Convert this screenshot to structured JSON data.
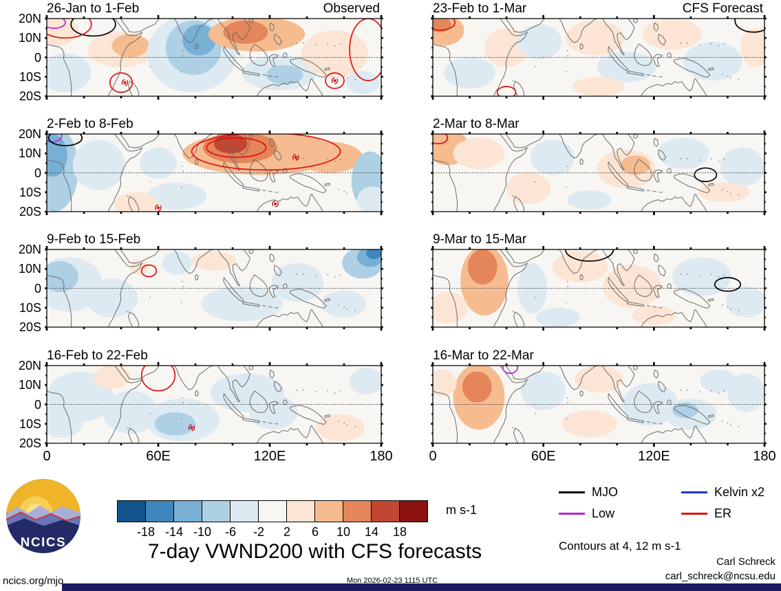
{
  "chart_data": {
    "type": "heatmap",
    "title": "7-day VWND200 with CFS forecasts",
    "contour_note": "Contours at 4, 12 m s-1",
    "x_ticks": [
      "0",
      "60E",
      "120E",
      "180"
    ],
    "y_ticks": [
      "20N",
      "10N",
      "0",
      "10S",
      "20S"
    ],
    "xlim": [
      0,
      180
    ],
    "ylim_deg": [
      -20,
      20
    ],
    "columns": [
      "Observed",
      "CFS Forecast"
    ],
    "colorbar": {
      "label": "m s-1",
      "ticks": [
        "-18",
        "-14",
        "-10",
        "-6",
        "-2",
        "2",
        "6",
        "10",
        "14",
        "18"
      ],
      "colors": [
        "#14538c",
        "#3e86bb",
        "#77b0d4",
        "#aed0e4",
        "#ddeaf2",
        "#f8f6f3",
        "#fce5d4",
        "#f6bc90",
        "#e4855a",
        "#c24732",
        "#8c1212"
      ]
    },
    "value_colors": {
      "-18": "#14538c",
      "-14": "#3e86bb",
      "-10": "#77b0d4",
      "-6": "#aed0e4",
      "-2": "#ddeaf2",
      "2": "#fce5d4",
      "6": "#f6bc90",
      "10": "#e4855a",
      "14": "#c24732",
      "18": "#8c1212"
    },
    "legend": [
      {
        "label": "MJO",
        "color": "#000000"
      },
      {
        "label": "Kelvin x2",
        "color": "#2233cc"
      },
      {
        "label": "Low",
        "color": "#bb22cc"
      },
      {
        "label": "ER",
        "color": "#dd1111"
      }
    ],
    "panels": [
      {
        "title": "26-Jan to 1-Feb",
        "corner": "Observed",
        "anomalies": [
          [
            5,
            14,
            12,
            8,
            2
          ],
          [
            40,
            4,
            18,
            9,
            2
          ],
          [
            45,
            6,
            10,
            6,
            6
          ],
          [
            78,
            2,
            24,
            20,
            -2
          ],
          [
            79,
            5,
            15,
            14,
            -6
          ],
          [
            82,
            9,
            9,
            8,
            -10
          ],
          [
            113,
            12,
            26,
            9,
            6
          ],
          [
            107,
            13,
            12,
            6,
            10
          ],
          [
            125,
            -8,
            20,
            9,
            -2
          ],
          [
            128,
            -9,
            10,
            5,
            -6
          ],
          [
            10,
            -8,
            14,
            10,
            -2
          ],
          [
            155,
            2,
            18,
            12,
            2
          ],
          [
            170,
            -13,
            9,
            6,
            -2
          ]
        ],
        "contours": [
          [
            "black",
            25,
            17,
            12,
            6
          ],
          [
            "purple",
            4,
            18,
            6,
            3
          ],
          [
            "red",
            10,
            17,
            14,
            7
          ],
          [
            "red",
            40,
            -13,
            6,
            5
          ],
          [
            "red",
            173,
            4,
            10,
            16
          ],
          [
            "red",
            155,
            -12,
            5,
            4
          ]
        ],
        "cyclones": [
          [
            42,
            -13
          ],
          [
            155,
            -12
          ]
        ]
      },
      {
        "title": "23-Feb to 1-Mar",
        "corner": "CFS Forecast",
        "anomalies": [
          [
            6,
            14,
            11,
            8,
            6
          ],
          [
            4,
            17,
            6,
            4,
            10
          ],
          [
            20,
            -8,
            14,
            8,
            -2
          ],
          [
            40,
            5,
            12,
            10,
            2
          ],
          [
            58,
            8,
            12,
            9,
            -2
          ],
          [
            88,
            10,
            16,
            9,
            2
          ],
          [
            105,
            -5,
            16,
            8,
            -2
          ],
          [
            130,
            12,
            16,
            8,
            2
          ],
          [
            152,
            -2,
            16,
            10,
            -2
          ],
          [
            175,
            5,
            8,
            10,
            2
          ],
          [
            90,
            -15,
            14,
            5,
            2
          ]
        ],
        "contours": [
          [
            "red",
            4,
            18,
            8,
            4
          ],
          [
            "black",
            174,
            19,
            10,
            6
          ],
          [
            "red",
            40,
            -18,
            5,
            3
          ]
        ],
        "cyclones": []
      },
      {
        "title": "2-Feb to 8-Feb",
        "corner": null,
        "anomalies": [
          [
            4,
            2,
            13,
            22,
            -6
          ],
          [
            3,
            9,
            8,
            11,
            -10
          ],
          [
            28,
            4,
            14,
            13,
            -2
          ],
          [
            115,
            10,
            42,
            11,
            6
          ],
          [
            104,
            13,
            20,
            8,
            10
          ],
          [
            99,
            15,
            9,
            5,
            14
          ],
          [
            152,
            8,
            18,
            8,
            6
          ],
          [
            70,
            -12,
            16,
            7,
            -2
          ],
          [
            60,
            5,
            10,
            8,
            -2
          ],
          [
            174,
            -4,
            10,
            15,
            -6
          ],
          [
            175,
            -14,
            8,
            7,
            -2
          ],
          [
            48,
            -16,
            12,
            6,
            2
          ]
        ],
        "contours": [
          [
            "red",
            118,
            11,
            40,
            9.5
          ],
          [
            "red",
            102,
            13,
            16,
            5
          ],
          [
            "purple",
            3,
            19,
            5,
            3
          ],
          [
            "black",
            10,
            18,
            9,
            4
          ]
        ],
        "cyclones": [
          [
            60,
            -18
          ],
          [
            123,
            -16
          ],
          [
            134,
            8
          ]
        ]
      },
      {
        "title": "2-Mar to 8-Mar",
        "corner": null,
        "anomalies": [
          [
            8,
            13,
            12,
            9,
            6
          ],
          [
            25,
            10,
            14,
            8,
            2
          ],
          [
            52,
            -8,
            12,
            8,
            2
          ],
          [
            65,
            8,
            12,
            9,
            -2
          ],
          [
            105,
            2,
            16,
            10,
            2
          ],
          [
            110,
            4,
            8,
            5,
            6
          ],
          [
            136,
            10,
            14,
            8,
            -2
          ],
          [
            168,
            3,
            12,
            10,
            -2
          ],
          [
            158,
            -10,
            14,
            5,
            2
          ],
          [
            85,
            -14,
            12,
            5,
            -2
          ]
        ],
        "contours": [
          [
            "black",
            148,
            -1,
            6,
            3.5
          ],
          [
            "red",
            3,
            18,
            5,
            3
          ]
        ],
        "cyclones": []
      },
      {
        "title": "9-Feb to 15-Feb",
        "corner": null,
        "anomalies": [
          [
            12,
            2,
            18,
            14,
            -2
          ],
          [
            7,
            6,
            10,
            8,
            -6
          ],
          [
            35,
            -5,
            14,
            10,
            -2
          ],
          [
            50,
            11,
            5,
            4,
            2
          ],
          [
            70,
            13,
            8,
            6,
            -2
          ],
          [
            105,
            -8,
            22,
            9,
            -2
          ],
          [
            135,
            3,
            14,
            10,
            -2
          ],
          [
            160,
            -8,
            12,
            7,
            -2
          ],
          [
            90,
            14,
            12,
            5,
            2
          ],
          [
            170,
            13,
            11,
            8,
            -6
          ],
          [
            174,
            16,
            7,
            5,
            -10
          ],
          [
            176,
            18,
            4,
            3,
            -14
          ]
        ],
        "contours": [
          [
            "red",
            55,
            9,
            4,
            3
          ]
        ],
        "cyclones": []
      },
      {
        "title": "9-Mar to 15-Mar",
        "corner": null,
        "anomalies": [
          [
            28,
            4,
            13,
            18,
            6
          ],
          [
            27,
            11,
            8,
            9,
            10
          ],
          [
            8,
            -10,
            11,
            8,
            2
          ],
          [
            54,
            0,
            8,
            13,
            -2
          ],
          [
            80,
            11,
            15,
            8,
            2
          ],
          [
            108,
            1,
            16,
            11,
            2
          ],
          [
            146,
            6,
            16,
            10,
            -2
          ],
          [
            170,
            -7,
            11,
            8,
            -2
          ],
          [
            68,
            -15,
            12,
            5,
            -2
          ],
          [
            120,
            -14,
            12,
            5,
            2
          ]
        ],
        "contours": [
          [
            "black",
            85,
            20,
            13,
            6
          ],
          [
            "black",
            160,
            2,
            7,
            3.5
          ]
        ],
        "cyclones": []
      },
      {
        "title": "16-Feb to 22-Feb",
        "corner": null,
        "anomalies": [
          [
            18,
            4,
            18,
            13,
            -2
          ],
          [
            8,
            -8,
            12,
            9,
            -2
          ],
          [
            45,
            -4,
            15,
            11,
            -2
          ],
          [
            73,
            -8,
            20,
            11,
            -2
          ],
          [
            69,
            -10,
            11,
            6,
            -6
          ],
          [
            108,
            6,
            20,
            10,
            -2
          ],
          [
            122,
            -4,
            13,
            9,
            -2
          ],
          [
            158,
            -12,
            13,
            7,
            2
          ],
          [
            172,
            12,
            9,
            7,
            -2
          ],
          [
            35,
            14,
            10,
            6,
            2
          ]
        ],
        "contours": [
          [
            "red",
            60,
            15,
            9,
            8
          ]
        ],
        "cyclones": [
          [
            78,
            -12
          ]
        ]
      },
      {
        "title": "16-Mar to 22-Mar",
        "corner": null,
        "anomalies": [
          [
            25,
            4,
            14,
            17,
            6
          ],
          [
            24,
            9,
            8,
            8,
            10
          ],
          [
            5,
            11,
            8,
            7,
            2
          ],
          [
            60,
            7,
            12,
            10,
            -2
          ],
          [
            90,
            13,
            13,
            7,
            2
          ],
          [
            85,
            -10,
            15,
            7,
            2
          ],
          [
            118,
            0,
            15,
            11,
            -2
          ],
          [
            140,
            -5,
            14,
            8,
            -2
          ],
          [
            137,
            -3,
            7,
            4,
            -6
          ],
          [
            170,
            6,
            10,
            10,
            -2
          ],
          [
            155,
            12,
            10,
            6,
            -2
          ]
        ],
        "contours": [
          [
            "purple",
            42,
            19,
            4,
            3
          ]
        ],
        "cyclones": []
      }
    ]
  },
  "footer": {
    "site": "ncics.org/mjo",
    "timestamp": "Mon 2026-02-23 1115 UTC",
    "author": "Carl Schreck",
    "email": "carl_schreck@ncsu.edu"
  },
  "logo": {
    "text": "NCICS"
  }
}
